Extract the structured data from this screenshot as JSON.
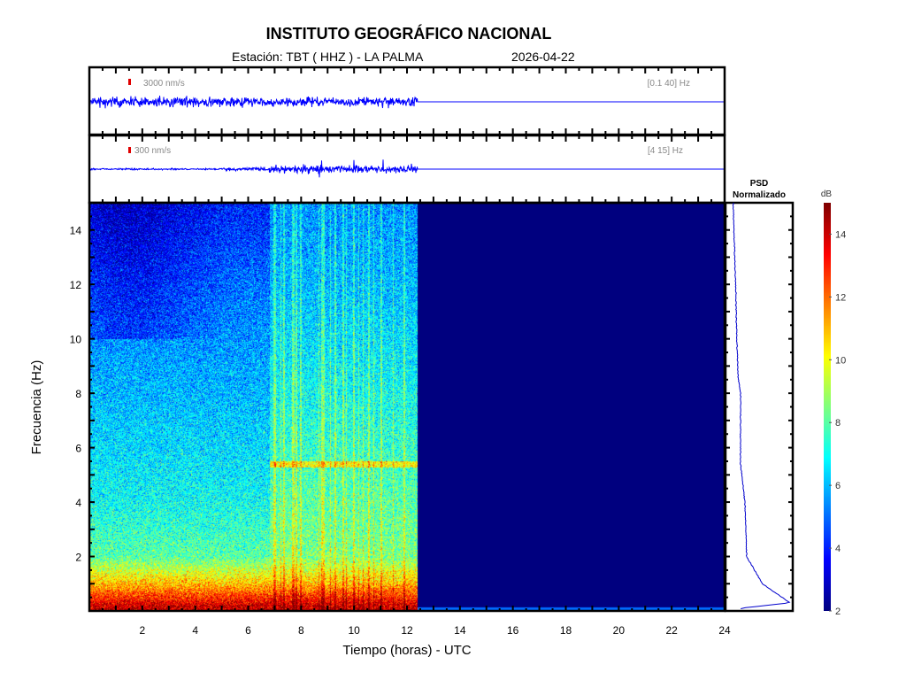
{
  "header": {
    "title": "INSTITUTO GEOGRÁFICO NACIONAL",
    "station": "Estación:  TBT ( HHZ ) - LA PALMA",
    "date": "2026-04-22"
  },
  "traces": [
    {
      "scale": "3000 nm/s",
      "band": "[0.1 40] Hz",
      "color": "#0000ff",
      "data_end_hour": 12.4
    },
    {
      "scale": "300 nm/s",
      "band": "[4 15] Hz",
      "color": "#0000ff",
      "data_end_hour": 12.4,
      "activity_start_hour": 6.8
    }
  ],
  "psd": {
    "title_line1": "PSD",
    "title_line2": "Normalizado"
  },
  "colorbar": {
    "label": "dB",
    "range": [
      2,
      15
    ],
    "ticks": [
      "2",
      "4",
      "6",
      "8",
      "10",
      "12",
      "14"
    ],
    "colormap": "jet"
  },
  "chart_data": {
    "type": "heatmap",
    "title": "INSTITUTO GEOGRÁFICO NACIONAL",
    "xlabel": "Tiempo (horas) - UTC",
    "ylabel": "Frecuencia  (Hz)",
    "xlim": [
      0,
      24
    ],
    "ylim": [
      0,
      15
    ],
    "xticks": [
      "2",
      "4",
      "6",
      "8",
      "10",
      "12",
      "14",
      "16",
      "18",
      "20",
      "22",
      "24"
    ],
    "yticks": [
      "2",
      "4",
      "6",
      "8",
      "10",
      "12",
      "14"
    ],
    "data_end_hour": 12.4,
    "background_db": 2,
    "segments": [
      {
        "hours": [
          0,
          6.8
        ],
        "freq_profile_db": [
          [
            0.2,
            14
          ],
          [
            1,
            11
          ],
          [
            2,
            8
          ],
          [
            4,
            7
          ],
          [
            8,
            6
          ],
          [
            12,
            5
          ],
          [
            15,
            4
          ]
        ]
      },
      {
        "hours": [
          6.8,
          12.4
        ],
        "freq_profile_db": [
          [
            0.2,
            14
          ],
          [
            1,
            11
          ],
          [
            2,
            8.5
          ],
          [
            4,
            8
          ],
          [
            8,
            7
          ],
          [
            12,
            6
          ],
          [
            15,
            5.5
          ]
        ],
        "spectral_line_hz": 5.4
      }
    ],
    "psd_profile": [
      [
        0.1,
        0.2
      ],
      [
        0.3,
        1.0
      ],
      [
        1,
        0.55
      ],
      [
        2,
        0.3
      ],
      [
        4,
        0.27
      ],
      [
        5.4,
        0.2
      ],
      [
        8,
        0.2
      ],
      [
        8.6,
        0.16
      ],
      [
        10,
        0.14
      ],
      [
        12,
        0.12
      ],
      [
        15,
        0.08
      ]
    ]
  }
}
